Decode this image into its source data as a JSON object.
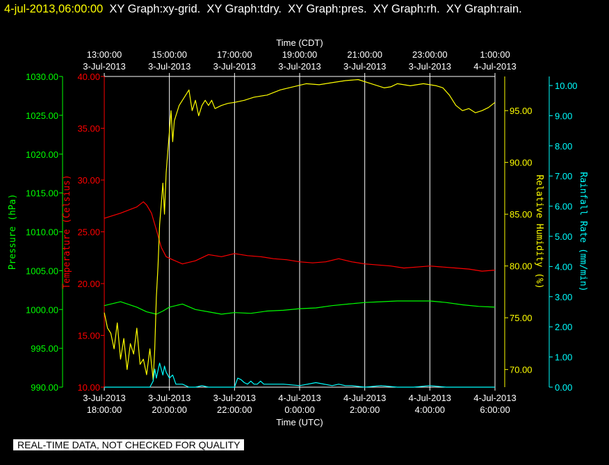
{
  "header": {
    "timestamp": "4-jul-2013,06:00:00",
    "graphs": "XY Graph:xy-grid.  XY Graph:tdry.  XY Graph:pres.  XY Graph:rh.  XY Graph:rain."
  },
  "footer": {
    "notice": "REAL-TIME DATA, NOT CHECKED FOR QUALITY"
  },
  "colors": {
    "pressure": "#00ff00",
    "temperature": "#ff0000",
    "humidity": "#ffff00",
    "rain": "#00ffff",
    "grid": "#ffffff",
    "axis_text": "#ffffff",
    "background": "#000000"
  },
  "chart_data": {
    "type": "line",
    "x_top_title": "Time (CDT)",
    "x_bottom_title": "Time (UTC)",
    "x_hours_range": [
      0,
      12
    ],
    "ticks_bottom": [
      [
        "3-Jul-2013",
        "18:00:00"
      ],
      [
        "3-Jul-2013",
        "20:00:00"
      ],
      [
        "3-Jul-2013",
        "22:00:00"
      ],
      [
        "4-Jul-2013",
        "0:00:00"
      ],
      [
        "4-Jul-2013",
        "2:00:00"
      ],
      [
        "4-Jul-2013",
        "4:00:00"
      ],
      [
        "4-Jul-2013",
        "6:00:00"
      ]
    ],
    "ticks_top": [
      [
        "13:00:00",
        "3-Jul-2013"
      ],
      [
        "15:00:00",
        "3-Jul-2013"
      ],
      [
        "17:00:00",
        "3-Jul-2013"
      ],
      [
        "19:00:00",
        "3-Jul-2013"
      ],
      [
        "21:00:00",
        "3-Jul-2013"
      ],
      [
        "23:00:00",
        "3-Jul-2013"
      ],
      [
        "1:00:00",
        "4-Jul-2013"
      ]
    ],
    "axes": {
      "pressure": {
        "label": "Pressure (hPa)",
        "range": [
          990,
          1030
        ],
        "ticks": [
          "990.00",
          "995.00",
          "1000.00",
          "1005.00",
          "1010.00",
          "1015.00",
          "1020.00",
          "1025.00",
          "1030.00"
        ]
      },
      "temperature": {
        "label": "Temperature (Celsius)",
        "range": [
          10,
          40
        ],
        "ticks": [
          "10.00",
          "15.00",
          "20.00",
          "25.00",
          "30.00",
          "35.00",
          "40.00"
        ]
      },
      "humidity": {
        "label": "Relative Humidity (%)",
        "range": [
          68.3,
          98.3
        ],
        "ticks": [
          "70.00",
          "75.00",
          "80.00",
          "85.00",
          "90.00",
          "95.00"
        ]
      },
      "rain": {
        "label": "Rainfall Rate (mm/min)",
        "range": [
          0,
          10.3
        ],
        "ticks": [
          "0.00",
          "1.00",
          "2.00",
          "3.00",
          "4.00",
          "5.00",
          "6.00",
          "7.00",
          "8.00",
          "9.00",
          "10.00"
        ]
      }
    },
    "series": [
      {
        "key": "temperature",
        "x": [
          0,
          0.5,
          1,
          1.2,
          1.3,
          1.45,
          1.6,
          1.75,
          1.9,
          2.1,
          2.4,
          2.8,
          3.2,
          3.6,
          4,
          4.4,
          4.8,
          5.2,
          5.6,
          6,
          6.4,
          6.8,
          7.2,
          7.6,
          8,
          8.4,
          8.8,
          9.2,
          9.6,
          10,
          10.4,
          10.8,
          11.2,
          11.6,
          12
        ],
        "y": [
          26.3,
          26.8,
          27.4,
          27.9,
          27.6,
          26.8,
          25.2,
          23.5,
          22.6,
          22.3,
          21.9,
          22.2,
          22.8,
          22.6,
          22.9,
          22.7,
          22.6,
          22.4,
          22.3,
          22.1,
          22.0,
          22.1,
          22.4,
          22.1,
          21.9,
          21.8,
          21.7,
          21.5,
          21.6,
          21.7,
          21.6,
          21.5,
          21.4,
          21.2,
          21.3
        ]
      },
      {
        "key": "pressure",
        "x": [
          0,
          0.5,
          1,
          1.3,
          1.6,
          1.8,
          2,
          2.4,
          2.8,
          3.2,
          3.6,
          4,
          4.5,
          5,
          5.5,
          6,
          6.5,
          7,
          7.5,
          8,
          8.5,
          9,
          9.5,
          10,
          10.5,
          11,
          11.5,
          12
        ],
        "y": [
          1000.5,
          1001.0,
          1000.3,
          999.7,
          999.4,
          999.8,
          1000.3,
          1000.7,
          1000.0,
          999.7,
          999.4,
          999.6,
          999.5,
          999.8,
          999.9,
          1000.1,
          1000.2,
          1000.5,
          1000.7,
          1000.9,
          1001.0,
          1001.1,
          1001.1,
          1001.1,
          1000.9,
          1000.6,
          1000.4,
          1000.3
        ]
      },
      {
        "key": "humidity",
        "x": [
          0,
          0.1,
          0.2,
          0.3,
          0.4,
          0.5,
          0.6,
          0.7,
          0.8,
          0.9,
          1.0,
          1.1,
          1.2,
          1.3,
          1.4,
          1.5,
          1.55,
          1.6,
          1.65,
          1.7,
          1.75,
          1.8,
          1.85,
          1.9,
          1.95,
          2.0,
          2.05,
          2.1,
          2.15,
          2.2,
          2.3,
          2.4,
          2.5,
          2.6,
          2.7,
          2.8,
          2.9,
          3.0,
          3.1,
          3.2,
          3.3,
          3.4,
          3.6,
          3.8,
          4.0,
          4.3,
          4.6,
          5.0,
          5.4,
          5.8,
          6.2,
          6.6,
          7.0,
          7.4,
          7.8,
          8.2,
          8.6,
          8.8,
          9.0,
          9.2,
          9.4,
          9.6,
          9.8,
          10.0,
          10.2,
          10.4,
          10.6,
          10.8,
          11.0,
          11.2,
          11.4,
          11.6,
          11.8,
          12.0
        ],
        "y": [
          75.5,
          74.0,
          73.5,
          72.0,
          74.5,
          71.0,
          73.0,
          70.0,
          72.5,
          71.5,
          74.0,
          70.5,
          71.0,
          69.5,
          72.0,
          69.0,
          72.0,
          77.0,
          80.0,
          84.0,
          86.0,
          88.0,
          85.0,
          89.0,
          91.0,
          93.0,
          95.0,
          92.0,
          94.0,
          94.5,
          95.5,
          96.0,
          96.5,
          97.0,
          95.0,
          96.0,
          94.5,
          95.5,
          96.0,
          95.5,
          96.0,
          95.2,
          95.5,
          95.7,
          95.8,
          96.0,
          96.3,
          96.5,
          97.0,
          97.3,
          97.6,
          97.5,
          97.7,
          97.9,
          98.0,
          97.6,
          97.2,
          97.3,
          97.6,
          97.5,
          97.4,
          97.5,
          97.6,
          97.5,
          97.4,
          97.2,
          96.5,
          95.5,
          95.0,
          95.2,
          94.8,
          95.0,
          95.3,
          95.8
        ]
      },
      {
        "key": "rain",
        "x": [
          0,
          1.4,
          1.5,
          1.55,
          1.6,
          1.7,
          1.8,
          1.85,
          1.9,
          2.0,
          2.1,
          2.2,
          2.4,
          2.6,
          2.8,
          3.0,
          3.2,
          3.4,
          4.0,
          4.1,
          4.2,
          4.3,
          4.4,
          4.5,
          4.6,
          4.7,
          4.8,
          4.9,
          5.0,
          5.5,
          6.0,
          6.5,
          7.0,
          7.2,
          7.4,
          7.6,
          8.0,
          8.5,
          9.0,
          9.5,
          10.0,
          10.5,
          11.0,
          12.0
        ],
        "y": [
          0.0,
          0.0,
          0.2,
          0.6,
          0.3,
          0.8,
          0.4,
          0.7,
          0.5,
          0.3,
          0.4,
          0.1,
          0.1,
          0.0,
          0.0,
          0.05,
          0.0,
          0.0,
          0.0,
          0.3,
          0.25,
          0.15,
          0.1,
          0.2,
          0.1,
          0.1,
          0.2,
          0.1,
          0.1,
          0.1,
          0.05,
          0.15,
          0.05,
          0.1,
          0.05,
          0.05,
          0.0,
          0.05,
          0.0,
          0.0,
          0.05,
          0.0,
          0.0,
          0.0
        ]
      }
    ]
  }
}
